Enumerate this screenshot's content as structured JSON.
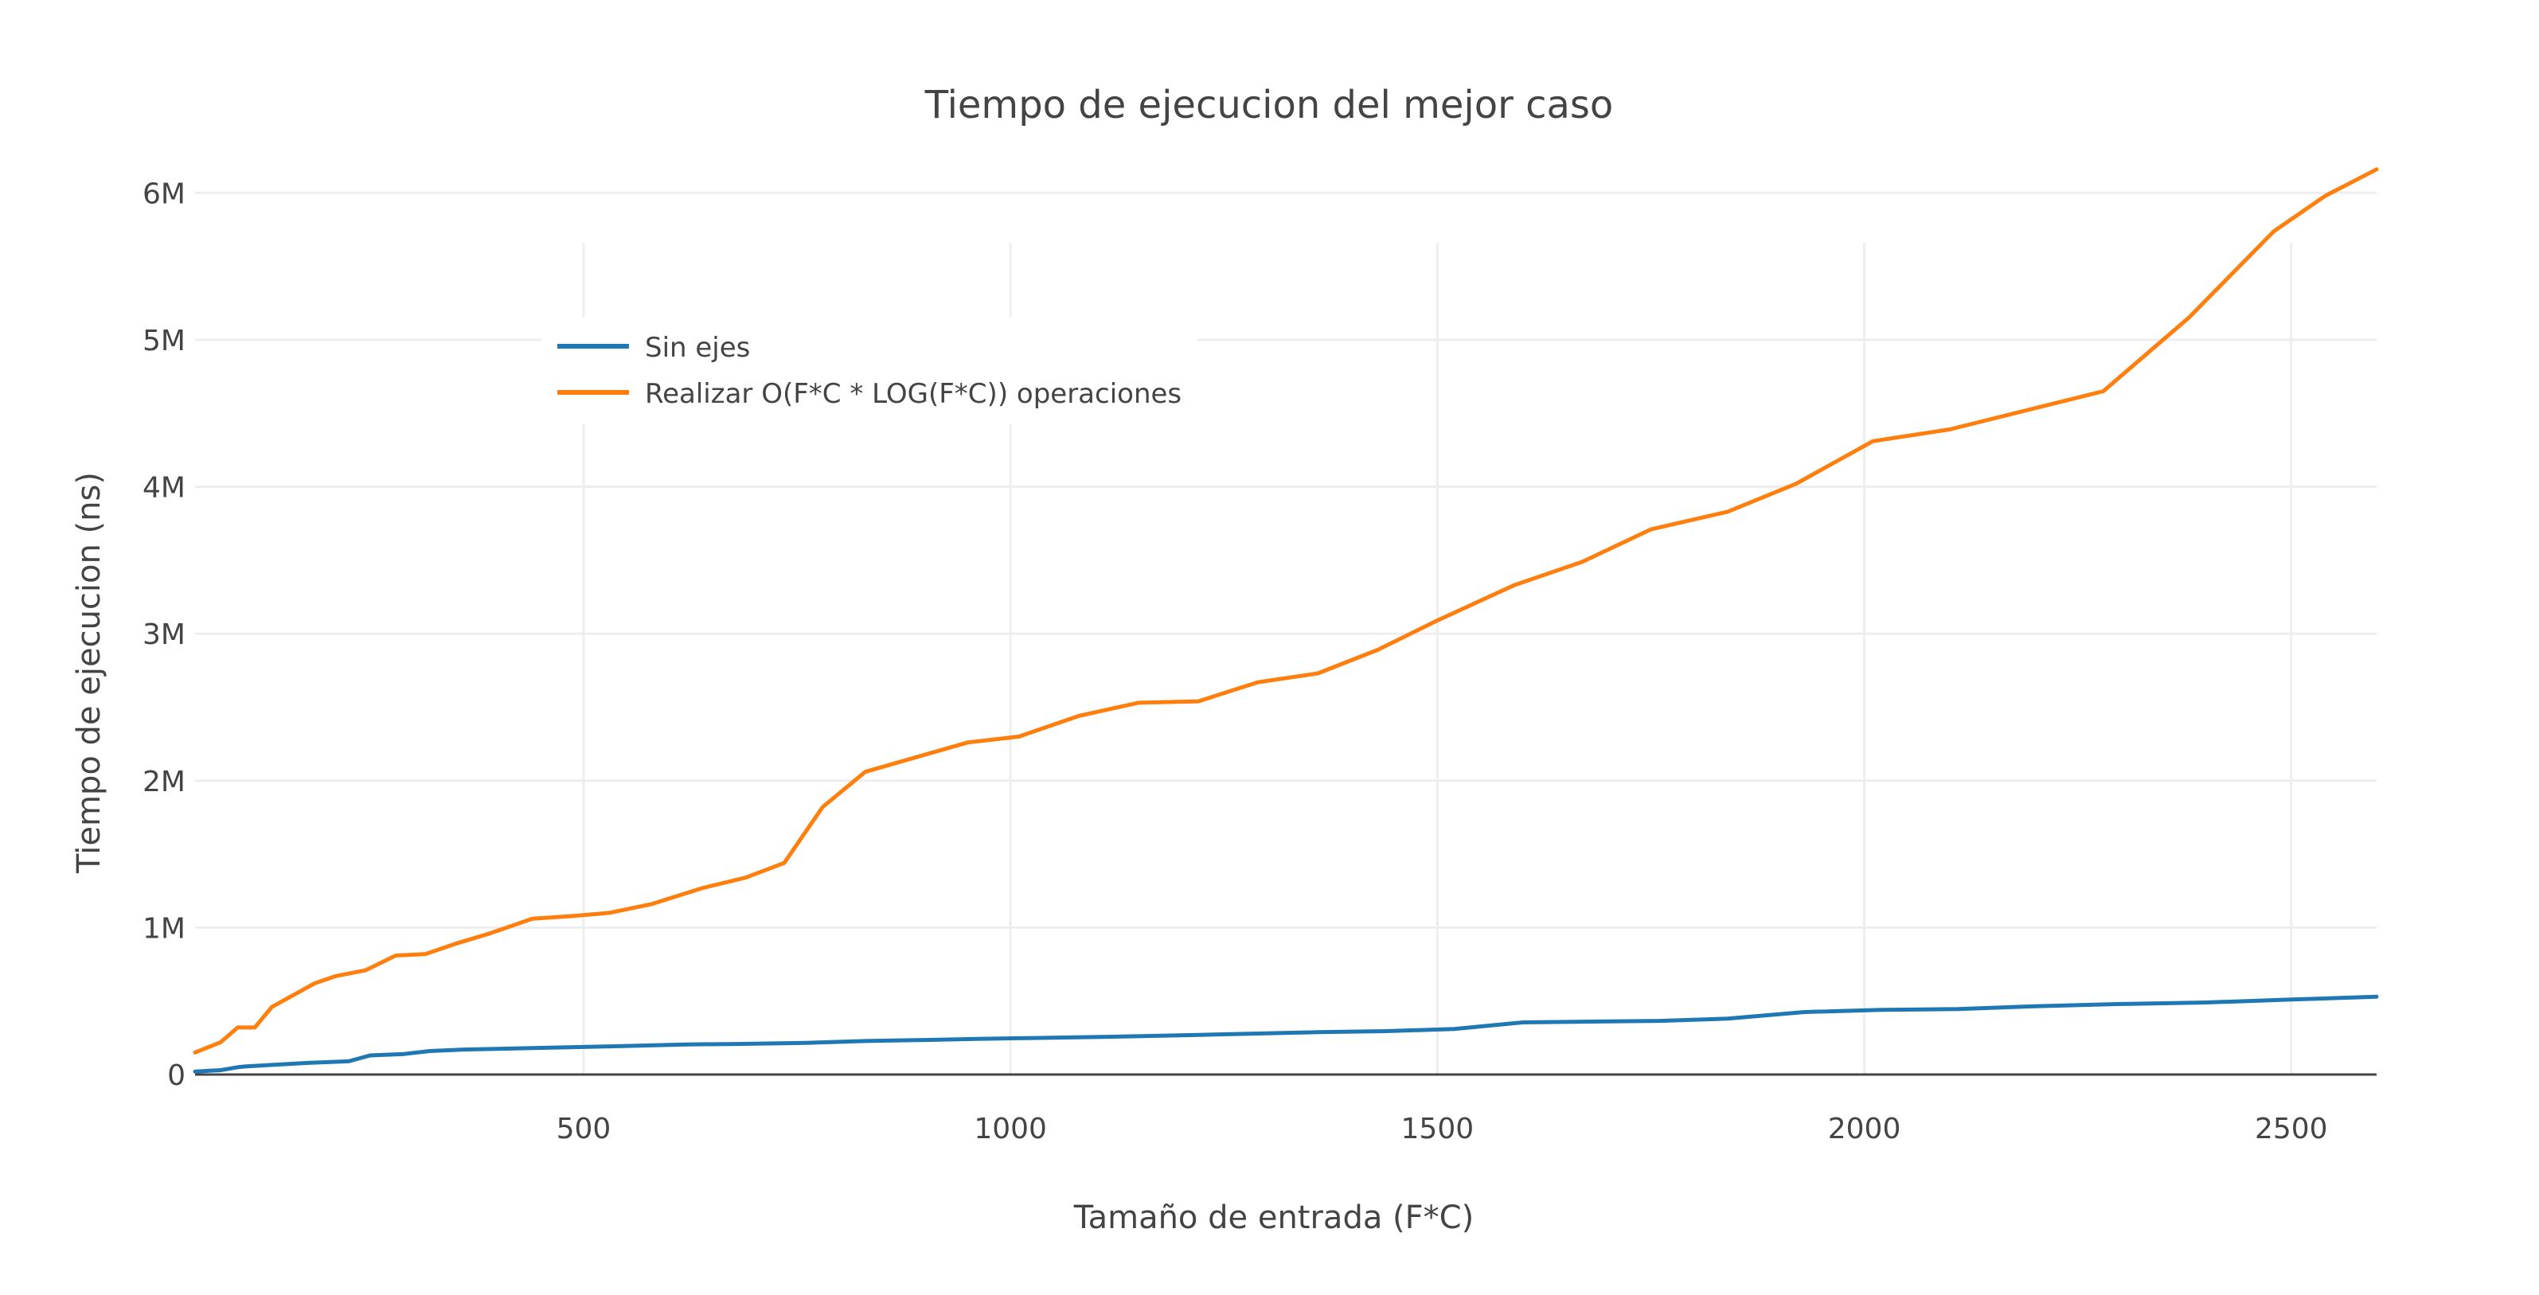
{
  "chart_data": {
    "type": "line",
    "title": "Tiempo de ejecucion del mejor caso",
    "xlabel": "Tamaño de entrada (F*C)",
    "ylabel": "Tiempo de ejecucion (ns)",
    "xlim": [
      45,
      2600
    ],
    "ylim": [
      0,
      6500000
    ],
    "xticks": [
      500,
      1000,
      1500,
      2000,
      2500
    ],
    "xtick_labels": [
      "500",
      "1000",
      "1500",
      "2000",
      "2500"
    ],
    "yticks": [
      0,
      1000000,
      2000000,
      3000000,
      4000000,
      5000000,
      6000000
    ],
    "ytick_labels": [
      "0",
      "1M",
      "2M",
      "3M",
      "4M",
      "5M",
      "6M"
    ],
    "grid": true,
    "legend_position": "top-left",
    "series": [
      {
        "name": "Sin ejes",
        "color": "#1f77b4",
        "x": [
          45,
          75,
          95,
          105,
          180,
          225,
          250,
          290,
          320,
          360,
          440,
          520,
          620,
          680,
          760,
          830,
          900,
          960,
          1020,
          1100,
          1160,
          1220,
          1300,
          1360,
          1440,
          1520,
          1600,
          1680,
          1760,
          1840,
          1930,
          2020,
          2110,
          2200,
          2300,
          2400,
          2500,
          2600
        ],
        "y": [
          20000,
          30000,
          50000,
          55000,
          80000,
          90000,
          130000,
          140000,
          160000,
          170000,
          180000,
          190000,
          205000,
          208000,
          215000,
          228000,
          235000,
          242000,
          248000,
          255000,
          262000,
          270000,
          280000,
          288000,
          295000,
          310000,
          355000,
          360000,
          365000,
          380000,
          425000,
          440000,
          445000,
          465000,
          480000,
          490000,
          510000,
          530000
        ]
      },
      {
        "name": "Realizar O(F*C * LOG(F*C)) operaciones",
        "color": "#ff7f0e",
        "x": [
          45,
          75,
          95,
          115,
          135,
          185,
          210,
          245,
          280,
          315,
          350,
          390,
          440,
          490,
          530,
          580,
          640,
          690,
          735,
          780,
          830,
          890,
          950,
          1010,
          1080,
          1150,
          1220,
          1290,
          1360,
          1430,
          1500,
          1590,
          1670,
          1750,
          1840,
          1920,
          2010,
          2100,
          2190,
          2280,
          2380,
          2480,
          2540,
          2600
        ],
        "y": [
          150000,
          220000,
          320000,
          320000,
          460000,
          620000,
          670000,
          710000,
          810000,
          820000,
          890000,
          960000,
          1060000,
          1080000,
          1100000,
          1160000,
          1270000,
          1340000,
          1440000,
          1820000,
          2060000,
          2160000,
          2260000,
          2300000,
          2440000,
          2530000,
          2540000,
          2670000,
          2730000,
          2890000,
          3090000,
          3330000,
          3490000,
          3710000,
          3830000,
          4020000,
          4310000,
          4390000,
          4520000,
          4650000,
          5150000,
          5740000,
          5980000,
          6160000
        ]
      }
    ]
  }
}
